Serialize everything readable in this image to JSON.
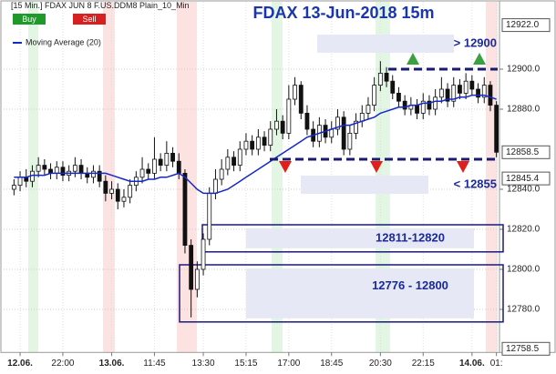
{
  "toolbar": {
    "title": "[15 Min.] FDAX JUN 8   F.US.DDM8 Plain_10_Min",
    "buttons": [
      "Buy",
      "Sell"
    ]
  },
  "chart_data": {
    "type": "candlestick",
    "title": "FDAX 13-Jun-2018 15m",
    "categories": [
      null,
      "12.06.",
      null,
      null,
      null,
      null,
      null,
      null,
      "22:00",
      null,
      null,
      null,
      null,
      null,
      null,
      null,
      "13.06.",
      null,
      null,
      null,
      null,
      null,
      null,
      "11:45",
      null,
      null,
      null,
      null,
      null,
      null,
      null,
      "13:30",
      null,
      null,
      null,
      null,
      null,
      null,
      "15:15",
      null,
      null,
      null,
      null,
      null,
      null,
      "17:00",
      null,
      null,
      null,
      null,
      null,
      null,
      "18:45",
      null,
      null,
      null,
      null,
      null,
      null,
      null,
      "20:30",
      null,
      null,
      null,
      null,
      null,
      null,
      "22:15",
      null,
      null,
      null,
      null,
      null,
      null,
      null,
      "14.06.",
      null,
      null,
      null,
      "01:"
    ],
    "open": [
      12840,
      12842,
      12846,
      12844,
      12849,
      12852,
      12850,
      12848,
      12851,
      12847,
      12849,
      12852,
      12848,
      12846,
      12849,
      12844,
      12838,
      12840,
      12834,
      12836,
      12842,
      12846,
      12850,
      12848,
      12855,
      12852,
      12858,
      12854,
      12848,
      12812,
      12790,
      12800,
      12815,
      12838,
      12845,
      12850,
      12856,
      12852,
      12860,
      12864,
      12860,
      12866,
      12862,
      12870,
      12874,
      12868,
      12885,
      12892,
      12878,
      12870,
      12864,
      12872,
      12866,
      12870,
      12876,
      12860,
      12868,
      12874,
      12878,
      12882,
      12892,
      12898,
      12894,
      12888,
      12884,
      12880,
      12882,
      12878,
      12884,
      12880,
      12886,
      12890,
      12884,
      12892,
      12888,
      12894,
      12890,
      12886,
      12892,
      12882
    ],
    "high": [
      12845,
      12849,
      12850,
      12852,
      12856,
      12855,
      12853,
      12854,
      12854,
      12852,
      12856,
      12855,
      12851,
      12852,
      12852,
      12847,
      12844,
      12843,
      12840,
      12845,
      12849,
      12856,
      12853,
      12866,
      12858,
      12864,
      12861,
      12858,
      12850,
      12815,
      12804,
      12818,
      12841,
      12850,
      12855,
      12860,
      12859,
      12864,
      12868,
      12867,
      12870,
      12869,
      12874,
      12880,
      12877,
      12892,
      12896,
      12894,
      12882,
      12874,
      12876,
      12875,
      12874,
      12880,
      12879,
      12872,
      12878,
      12882,
      12886,
      12896,
      12904,
      12901,
      12897,
      12891,
      12887,
      12886,
      12885,
      12888,
      12887,
      12890,
      12896,
      12893,
      12896,
      12895,
      12898,
      12897,
      12893,
      12896,
      12894,
      12884
    ],
    "low": [
      12837,
      12839,
      12841,
      12841,
      12846,
      12847,
      12845,
      12845,
      12844,
      12844,
      12846,
      12845,
      12843,
      12843,
      12841,
      12834,
      12835,
      12830,
      12831,
      12833,
      12839,
      12843,
      12845,
      12845,
      12849,
      12849,
      12851,
      12845,
      12808,
      12776,
      12786,
      12797,
      12812,
      12835,
      12842,
      12847,
      12849,
      12849,
      12857,
      12857,
      12857,
      12859,
      12859,
      12867,
      12865,
      12865,
      12882,
      12875,
      12867,
      12861,
      12861,
      12863,
      12863,
      12867,
      12857,
      12857,
      12865,
      12871,
      12875,
      12879,
      12889,
      12891,
      12885,
      12881,
      12877,
      12877,
      12875,
      12875,
      12877,
      12877,
      12883,
      12881,
      12881,
      12885,
      12885,
      12887,
      12883,
      12883,
      12879,
      12856
    ],
    "close": [
      12842,
      12846,
      12844,
      12849,
      12852,
      12850,
      12848,
      12851,
      12847,
      12849,
      12852,
      12848,
      12846,
      12849,
      12844,
      12838,
      12840,
      12834,
      12836,
      12842,
      12846,
      12850,
      12848,
      12855,
      12852,
      12858,
      12854,
      12848,
      12812,
      12790,
      12800,
      12815,
      12838,
      12845,
      12850,
      12856,
      12852,
      12860,
      12864,
      12860,
      12866,
      12862,
      12870,
      12874,
      12868,
      12885,
      12892,
      12878,
      12870,
      12864,
      12872,
      12866,
      12870,
      12876,
      12860,
      12868,
      12874,
      12878,
      12882,
      12892,
      12898,
      12894,
      12888,
      12884,
      12880,
      12882,
      12878,
      12884,
      12880,
      12886,
      12890,
      12884,
      12892,
      12888,
      12894,
      12890,
      12886,
      12892,
      12882,
      12858.5
    ],
    "up_color": "#ffffff",
    "down_color": "#111111",
    "overlay": {
      "name": "Moving Average  (20)",
      "color": "#1428c8",
      "values": [
        12846,
        12846,
        12846,
        12847,
        12847,
        12847,
        12848,
        12848,
        12848,
        12848,
        12848,
        12848,
        12848,
        12848,
        12848,
        12848,
        12847,
        12846,
        12845,
        12844,
        12844,
        12844,
        12845,
        12845,
        12846,
        12846,
        12847,
        12848,
        12846,
        12843,
        12840,
        12838,
        12838,
        12838,
        12839,
        12840,
        12842,
        12844,
        12846,
        12848,
        12850,
        12852,
        12854,
        12856,
        12858,
        12860,
        12862,
        12864,
        12866,
        12867,
        12868,
        12869,
        12870,
        12871,
        12872,
        12872,
        12873,
        12874,
        12875,
        12876,
        12878,
        12879,
        12880,
        12881,
        12881,
        12882,
        12882,
        12883,
        12883,
        12884,
        12884,
        12885,
        12885,
        12886,
        12886,
        12887,
        12887,
        12887,
        12886,
        12885
      ]
    },
    "legend": "upper left",
    "ylim": [
      12758.5,
      12922
    ],
    "yticks": [
      {
        "value": 12780,
        "label": "12780.0"
      },
      {
        "value": 12800,
        "label": "12800.0"
      },
      {
        "value": 12820,
        "label": "12820.0"
      },
      {
        "value": 12840,
        "label": "12840.0"
      },
      {
        "value": 12880,
        "label": "12880.0"
      },
      {
        "value": 12900,
        "label": "12900.0"
      }
    ],
    "price_markers": [
      {
        "value": 12922,
        "label": "12922.0"
      },
      {
        "value": 12858.5,
        "label": "12858.5"
      },
      {
        "value": 12845.4,
        "label": "12845.4"
      },
      {
        "value": 12758.5,
        "label": "12758.5"
      }
    ],
    "levels": [
      {
        "value": 12900,
        "label": "> 12900"
      },
      {
        "value": 12855,
        "label": "< 12855"
      }
    ],
    "zones": [
      {
        "low": 12811,
        "high": 12820,
        "label": "12811-12820"
      },
      {
        "low": 12776,
        "high": 12800,
        "label": "12776 - 12800"
      }
    ],
    "grid": true
  }
}
